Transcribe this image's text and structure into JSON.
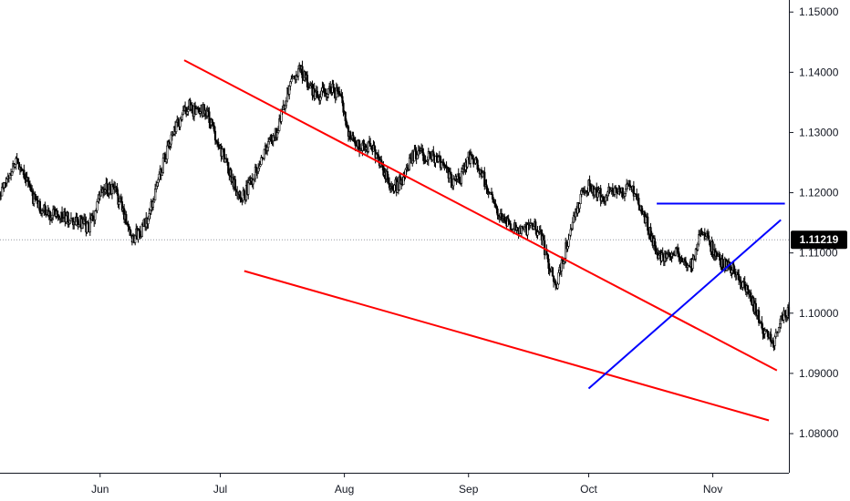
{
  "chart_data": {
    "type": "candlestick",
    "title": "",
    "xlabel": "",
    "ylabel": "",
    "x_ticks": [
      "Jun",
      "Jul",
      "Aug",
      "Sep",
      "Oct",
      "Nov"
    ],
    "y_ticks": [
      "1.15000",
      "1.14000",
      "1.13000",
      "1.12000",
      "1.11000",
      "1.10000",
      "1.09000",
      "1.08000"
    ],
    "y_tick_values": [
      1.15,
      1.14,
      1.13,
      1.12,
      1.11,
      1.1,
      1.09,
      1.08
    ],
    "ylim": [
      1.0735,
      1.152
    ],
    "x_range": [
      "2019-05-07",
      "2019-11-20"
    ],
    "x_tick_dates": [
      "2019-06-01",
      "2019-07-01",
      "2019-08-01",
      "2019-09-01",
      "2019-10-01",
      "2019-11-01"
    ],
    "last_price": "1.11219",
    "last_price_value": 1.11219,
    "grid": false,
    "price_path": [
      [
        "2019-05-07",
        1.1195
      ],
      [
        "2019-05-09",
        1.1225
      ],
      [
        "2019-05-11",
        1.1255
      ],
      [
        "2019-05-13",
        1.1235
      ],
      [
        "2019-05-15",
        1.1195
      ],
      [
        "2019-05-17",
        1.1175
      ],
      [
        "2019-05-19",
        1.1165
      ],
      [
        "2019-05-21",
        1.117
      ],
      [
        "2019-05-23",
        1.116
      ],
      [
        "2019-05-25",
        1.115
      ],
      [
        "2019-05-27",
        1.115
      ],
      [
        "2019-05-29",
        1.114
      ],
      [
        "2019-05-31",
        1.117
      ],
      [
        "2019-06-01",
        1.1195
      ],
      [
        "2019-06-03",
        1.121
      ],
      [
        "2019-06-05",
        1.12
      ],
      [
        "2019-06-07",
        1.1165
      ],
      [
        "2019-06-09",
        1.1125
      ],
      [
        "2019-06-11",
        1.1135
      ],
      [
        "2019-06-13",
        1.1155
      ],
      [
        "2019-06-15",
        1.121
      ],
      [
        "2019-06-17",
        1.1255
      ],
      [
        "2019-06-19",
        1.1295
      ],
      [
        "2019-06-21",
        1.132
      ],
      [
        "2019-06-23",
        1.1345
      ],
      [
        "2019-06-25",
        1.133
      ],
      [
        "2019-06-27",
        1.134
      ],
      [
        "2019-06-29",
        1.131
      ],
      [
        "2019-07-01",
        1.1275
      ],
      [
        "2019-07-03",
        1.124
      ],
      [
        "2019-07-05",
        1.1205
      ],
      [
        "2019-07-07",
        1.1195
      ],
      [
        "2019-07-09",
        1.1225
      ],
      [
        "2019-07-11",
        1.1255
      ],
      [
        "2019-07-13",
        1.128
      ],
      [
        "2019-07-15",
        1.13
      ],
      [
        "2019-07-17",
        1.135
      ],
      [
        "2019-07-19",
        1.139
      ],
      [
        "2019-07-21",
        1.1405
      ],
      [
        "2019-07-23",
        1.138
      ],
      [
        "2019-07-25",
        1.136
      ],
      [
        "2019-07-27",
        1.1365
      ],
      [
        "2019-07-29",
        1.1375
      ],
      [
        "2019-07-31",
        1.136
      ],
      [
        "2019-08-02",
        1.13
      ],
      [
        "2019-08-04",
        1.128
      ],
      [
        "2019-08-06",
        1.128
      ],
      [
        "2019-08-08",
        1.1275
      ],
      [
        "2019-08-10",
        1.125
      ],
      [
        "2019-08-12",
        1.122
      ],
      [
        "2019-08-14",
        1.121
      ],
      [
        "2019-08-16",
        1.1225
      ],
      [
        "2019-08-18",
        1.126
      ],
      [
        "2019-08-20",
        1.1265
      ],
      [
        "2019-08-22",
        1.126
      ],
      [
        "2019-08-24",
        1.1255
      ],
      [
        "2019-08-26",
        1.124
      ],
      [
        "2019-08-28",
        1.1215
      ],
      [
        "2019-08-30",
        1.1225
      ],
      [
        "2019-09-01",
        1.126
      ],
      [
        "2019-09-03",
        1.125
      ],
      [
        "2019-09-05",
        1.122
      ],
      [
        "2019-09-07",
        1.1185
      ],
      [
        "2019-09-09",
        1.116
      ],
      [
        "2019-09-11",
        1.1145
      ],
      [
        "2019-09-13",
        1.114
      ],
      [
        "2019-09-15",
        1.1135
      ],
      [
        "2019-09-17",
        1.115
      ],
      [
        "2019-09-19",
        1.113
      ],
      [
        "2019-09-21",
        1.108
      ],
      [
        "2019-09-23",
        1.1045
      ],
      [
        "2019-09-25",
        1.11
      ],
      [
        "2019-09-27",
        1.115
      ],
      [
        "2019-09-29",
        1.1195
      ],
      [
        "2019-10-01",
        1.121
      ],
      [
        "2019-10-03",
        1.12
      ],
      [
        "2019-10-05",
        1.1195
      ],
      [
        "2019-10-07",
        1.121
      ],
      [
        "2019-10-09",
        1.1195
      ],
      [
        "2019-10-11",
        1.1215
      ],
      [
        "2019-10-13",
        1.1195
      ],
      [
        "2019-10-15",
        1.116
      ],
      [
        "2019-10-17",
        1.112
      ],
      [
        "2019-10-19",
        1.109
      ],
      [
        "2019-10-21",
        1.109
      ],
      [
        "2019-10-23",
        1.11
      ],
      [
        "2019-10-25",
        1.108
      ],
      [
        "2019-10-27",
        1.1085
      ],
      [
        "2019-10-29",
        1.114
      ],
      [
        "2019-10-31",
        1.112
      ],
      [
        "2019-11-02",
        1.109
      ],
      [
        "2019-11-04",
        1.108
      ],
      [
        "2019-11-06",
        1.107
      ],
      [
        "2019-11-08",
        1.105
      ],
      [
        "2019-11-10",
        1.103
      ],
      [
        "2019-11-12",
        1.1
      ],
      [
        "2019-11-14",
        1.0965
      ],
      [
        "2019-11-16",
        1.095
      ],
      [
        "2019-11-18",
        1.099
      ],
      [
        "2019-11-20",
        1.1
      ]
    ],
    "trendlines": [
      {
        "color": "#ff0000",
        "p1": [
          "2019-06-22",
          1.142
        ],
        "p2": [
          "2019-11-17",
          1.0905
        ]
      },
      {
        "color": "#ff0000",
        "p1": [
          "2019-07-07",
          1.107
        ],
        "p2": [
          "2019-11-15",
          1.0822
        ]
      },
      {
        "color": "#0000ff",
        "p1": [
          "2019-10-01",
          1.0875
        ],
        "p2": [
          "2019-11-18",
          1.1155
        ]
      },
      {
        "color": "#0000ff",
        "p1": [
          "2019-10-18",
          1.1182
        ],
        "p2": [
          "2019-11-19",
          1.1182
        ]
      }
    ],
    "colors": {
      "candle": "#000000",
      "axis_line": "#131722",
      "price_line": "#9598a1",
      "price_tag_bg": "#000000",
      "price_tag_text": "#ffffff"
    }
  }
}
